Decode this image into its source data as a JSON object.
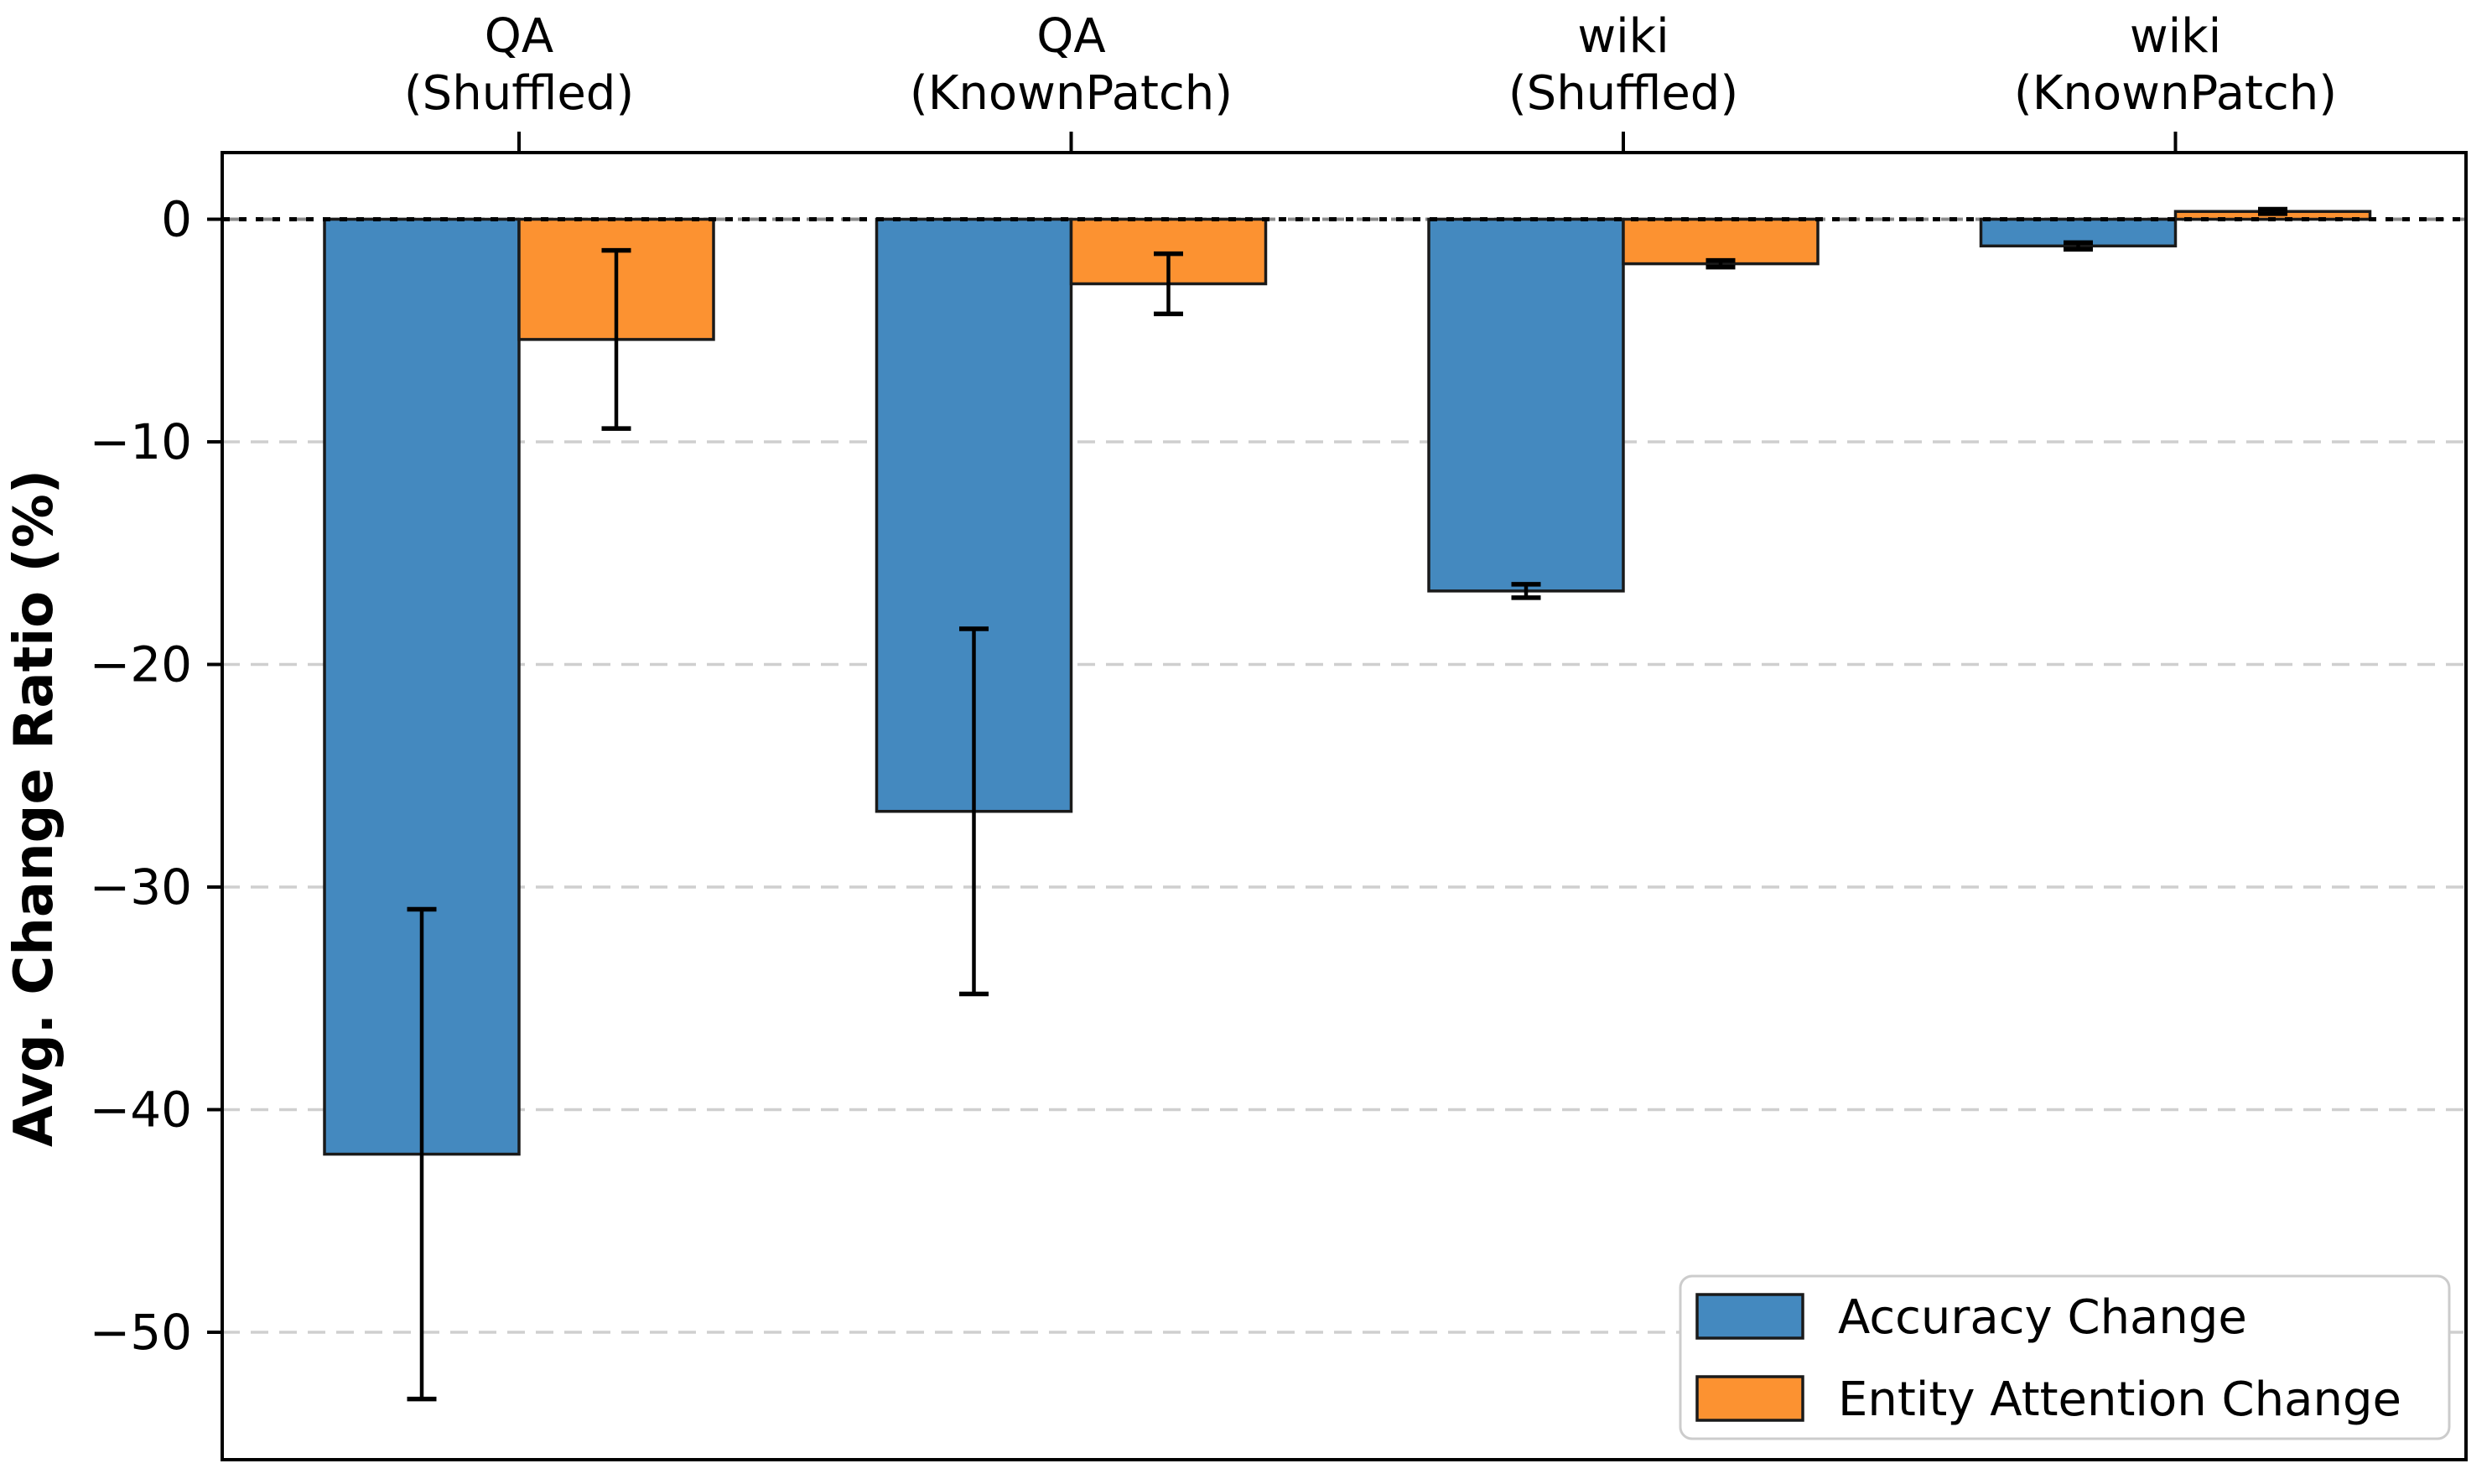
{
  "chart_data": {
    "type": "bar",
    "title": "",
    "xlabel": "",
    "ylabel": "Avg. Change Ratio (%)",
    "categories": [
      [
        "QA",
        "(Shuffled)"
      ],
      [
        "QA",
        "(KnownPatch)"
      ],
      [
        "wiki",
        "(Shuffled)"
      ],
      [
        "wiki",
        "(KnownPatch)"
      ]
    ],
    "series": [
      {
        "name": "Accuracy Change",
        "color": "#4489bf",
        "values": [
          -42.0,
          -26.6,
          -16.7,
          -1.2
        ],
        "errors": [
          11.0,
          8.2,
          0.3,
          0.15
        ]
      },
      {
        "name": "Entity Attention Change",
        "color": "#fc9231",
        "values": [
          -5.4,
          -2.9,
          -2.0,
          0.35
        ],
        "errors": [
          4.0,
          1.35,
          0.15,
          0.1
        ]
      }
    ],
    "ylim": [
      -55.7,
      3.0
    ],
    "yticks": [
      0,
      -10,
      -20,
      -30,
      -40,
      -50
    ],
    "ytick_labels": [
      "0",
      "−10",
      "−20",
      "−30",
      "−40",
      "−50"
    ],
    "grid": {
      "horizontal": true,
      "style": "dashed",
      "color": "#cfcfcf"
    },
    "zero_line": {
      "style": "dotted",
      "color": "#000000"
    },
    "x_axis_position": "top",
    "legend": {
      "position": "lower-right",
      "items": [
        "Accuracy Change",
        "Entity Attention Change"
      ]
    },
    "bar_edge_color": "#1a1a1a",
    "error_bar_color": "#000000"
  }
}
